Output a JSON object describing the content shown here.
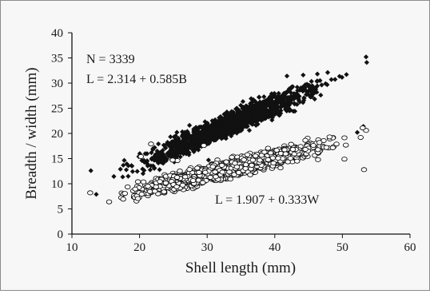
{
  "chart_data": {
    "type": "scatter",
    "xlabel": "Shell length (mm)",
    "ylabel": "Breadth / width (mm)",
    "xlim": [
      10,
      60
    ],
    "ylim": [
      0,
      40
    ],
    "x_ticks": [
      "10",
      "20",
      "30",
      "40",
      "50",
      "60"
    ],
    "y_ticks": [
      "0",
      "5",
      "10",
      "15",
      "20",
      "25",
      "30",
      "35",
      "40"
    ],
    "grid": false,
    "annotations": [
      "N = 3339",
      "L = 2.314 + 0.585B",
      "L = 1.907 + 0.333W"
    ],
    "series": [
      {
        "marker": "filled-diamond",
        "color": "#111111",
        "fit": {
          "intercept": 2.314,
          "slope": 0.585
        },
        "n_points": 1500,
        "x_range": [
          12.8,
          53.6
        ],
        "outliers": [
          [
            12.8,
            12.6
          ],
          [
            25.4,
            15.2
          ],
          [
            30.2,
            14.7
          ],
          [
            36.5,
            26.9
          ],
          [
            41.8,
            31.4
          ],
          [
            44.2,
            31.6
          ],
          [
            46.3,
            31.8
          ],
          [
            50.6,
            31.7
          ],
          [
            52.2,
            20.2
          ],
          [
            53.5,
            35.2
          ],
          [
            53.6,
            34.1
          ],
          [
            53.1,
            21.4
          ],
          [
            13.6,
            7.9
          ]
        ]
      },
      {
        "marker": "open-circle",
        "color": "#111111",
        "fit": {
          "intercept": 1.907,
          "slope": 0.333
        },
        "n_points": 1500,
        "x_range": [
          12.8,
          53.6
        ],
        "outliers": [
          [
            12.7,
            8.2
          ],
          [
            15.5,
            6.4
          ],
          [
            20.2,
            15.4
          ],
          [
            21.7,
            17.9
          ],
          [
            25.6,
            14.6
          ],
          [
            24.9,
            14.7
          ],
          [
            29.5,
            17.6
          ],
          [
            46.6,
            18.2
          ],
          [
            48.1,
            19.3
          ],
          [
            50.3,
            14.9
          ],
          [
            53.2,
            12.8
          ],
          [
            53.5,
            20.6
          ],
          [
            53.0,
            21.1
          ],
          [
            52.7,
            19.2
          ]
        ]
      }
    ]
  }
}
